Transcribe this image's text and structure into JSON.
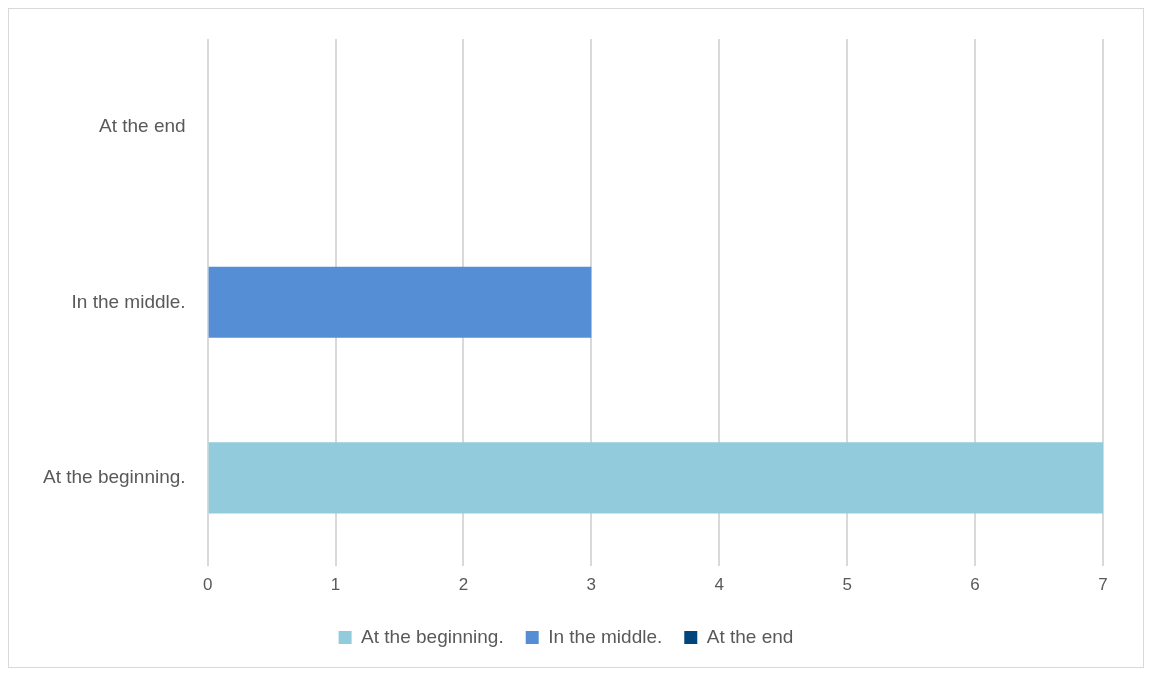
{
  "chart_data": {
    "type": "bar",
    "orientation": "horizontal",
    "categories": [
      "At the end",
      "In the middle.",
      "At the beginning."
    ],
    "series": [
      {
        "name": "At the beginning.",
        "color": "#92cbdc",
        "values": [
          null,
          null,
          7
        ]
      },
      {
        "name": "In the middle.",
        "color": "#558ed5",
        "values": [
          null,
          3,
          null
        ]
      },
      {
        "name": "At the end",
        "color": "#00457c",
        "values": [
          0,
          null,
          null
        ]
      }
    ],
    "xlim": [
      0,
      7
    ],
    "xticks": [
      0,
      1,
      2,
      3,
      4,
      5,
      6,
      7
    ],
    "grid": "x",
    "legend": "bottom"
  }
}
